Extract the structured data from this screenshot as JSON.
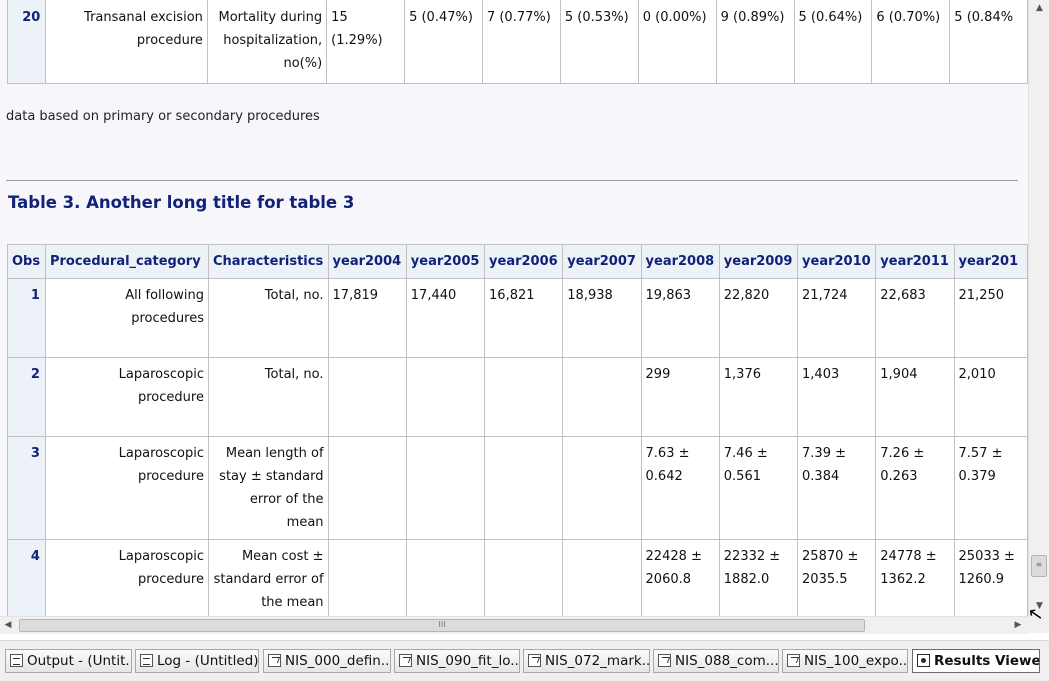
{
  "table_top": {
    "row": {
      "obs": "20",
      "procedural_category": "Transanal excision procedure",
      "characteristics": "Mortality during hospitalization, no(%)",
      "values": [
        "15 (1.29%)",
        "5 (0.47%)",
        "7 (0.77%)",
        "5 (0.53%)",
        "0 (0.00%)",
        "9 (0.89%)",
        "5 (0.64%)",
        "6 (0.70%)",
        "5 (0.84%"
      ]
    }
  },
  "footnote": "data based on primary or secondary procedures",
  "table3": {
    "title": "Table 3. Another long title for table 3",
    "headers": [
      "Obs",
      "Procedural_category",
      "Characteristics",
      "year2004",
      "year2005",
      "year2006",
      "year2007",
      "year2008",
      "year2009",
      "year2010",
      "year2011",
      "year201"
    ],
    "rows": [
      {
        "obs": "1",
        "procedural_category": "All following procedures",
        "characteristics": "Total, no.",
        "values": [
          "17,819",
          "17,440",
          "16,821",
          "18,938",
          "19,863",
          "22,820",
          "21,724",
          "22,683",
          "21,250"
        ]
      },
      {
        "obs": "2",
        "procedural_category": "Laparoscopic procedure",
        "characteristics": "Total, no.",
        "values": [
          "",
          "",
          "",
          "",
          "299",
          "1,376",
          "1,403",
          "1,904",
          "2,010"
        ]
      },
      {
        "obs": "3",
        "procedural_category": "Laparoscopic procedure",
        "characteristics": "Mean length of stay ± standard error of the mean",
        "values": [
          "",
          "",
          "",
          "",
          "7.63 ± 0.642",
          "7.46 ± 0.561",
          "7.39 ± 0.384",
          "7.26 ± 0.263",
          "7.57 ± 0.379"
        ]
      },
      {
        "obs": "4",
        "procedural_category": "Laparoscopic procedure",
        "characteristics": "Mean cost ± standard error of the mean",
        "values": [
          "",
          "",
          "",
          "",
          "22428 ± 2060.8",
          "22332 ± 1882.0",
          "25870 ± 2035.5",
          "24778 ± 1362.2",
          "25033 ± 1260.9"
        ]
      }
    ]
  },
  "scrollbars": {
    "grip_symbol": "≡",
    "h_grip_symbol": "III"
  },
  "taskbar": {
    "items": [
      {
        "label": "Output - (Untit...",
        "icon": "output-window-icon",
        "active": false
      },
      {
        "label": "Log - (Untitled)",
        "icon": "log-window-icon",
        "active": false
      },
      {
        "label": "NIS_000_defin...",
        "icon": "program-editor-icon",
        "active": false
      },
      {
        "label": "NIS_090_fit_lo...",
        "icon": "program-editor-icon",
        "active": false
      },
      {
        "label": "NIS_072_mark...",
        "icon": "program-editor-icon",
        "active": false
      },
      {
        "label": "NIS_088_com...",
        "icon": "program-editor-icon",
        "active": false
      },
      {
        "label": "NIS_100_expo...",
        "icon": "program-editor-icon",
        "active": false
      },
      {
        "label": "Results Viewe...",
        "icon": "results-viewer-icon",
        "active": true
      }
    ]
  }
}
